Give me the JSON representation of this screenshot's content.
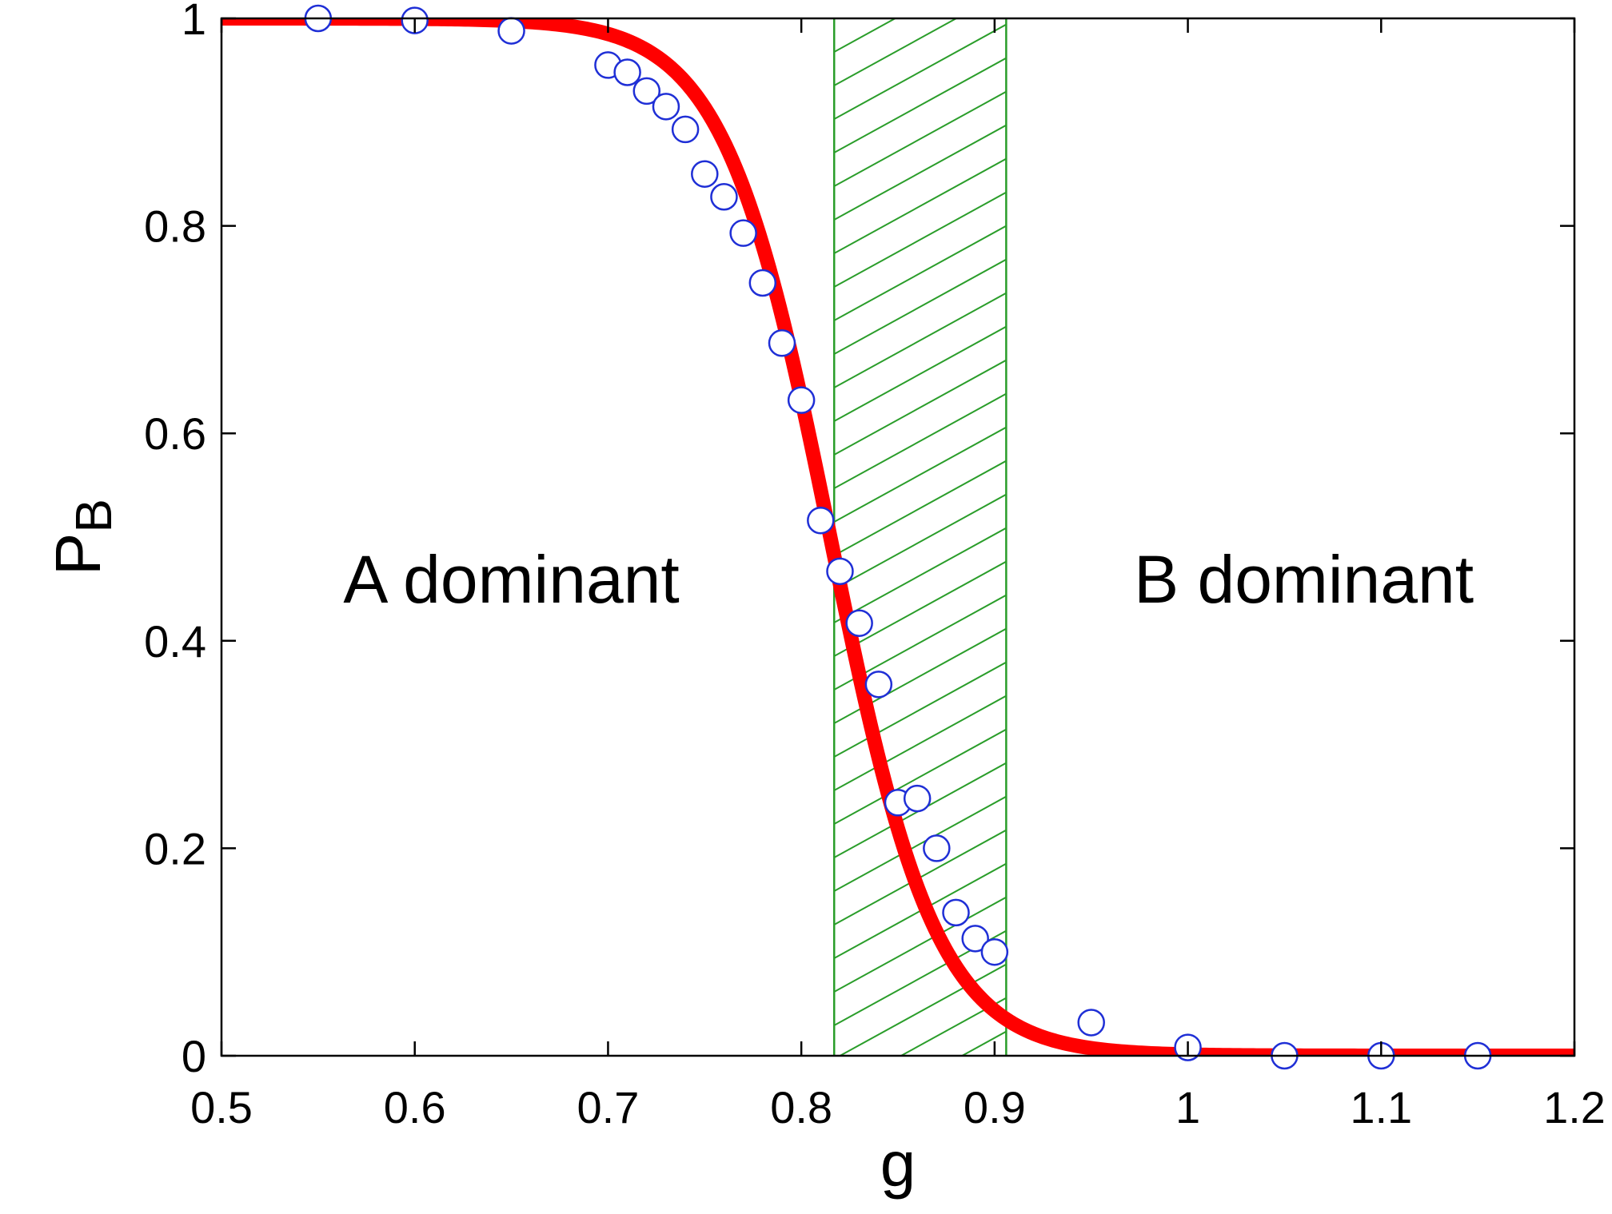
{
  "chart_data": {
    "type": "scatter",
    "xlabel": "g",
    "ylabel_main": "P",
    "ylabel_sub": "B",
    "xlim": [
      0.5,
      1.2
    ],
    "ylim": [
      0,
      1
    ],
    "x_ticks": [
      0.5,
      0.6,
      0.7,
      0.8,
      0.9,
      1.0,
      1.1,
      1.2
    ],
    "x_tick_labels": [
      "0.5",
      "0.6",
      "0.7",
      "0.8",
      "0.9",
      "1",
      "1.1",
      "1.2"
    ],
    "y_ticks": [
      0,
      0.2,
      0.4,
      0.6,
      0.8,
      1.0
    ],
    "y_tick_labels": [
      "0",
      "0.2",
      "0.4",
      "0.6",
      "0.8",
      "1"
    ],
    "grid": false,
    "annotations": [
      {
        "text": "A dominant",
        "x": 0.65,
        "y": 0.46
      },
      {
        "text": "B dominant",
        "x": 1.06,
        "y": 0.46
      }
    ],
    "shaded_region": {
      "x_start": 0.817,
      "x_end": 0.906,
      "pattern": "diagonal hatch",
      "color": "#2a9d2a"
    },
    "series": [
      {
        "kind": "curve",
        "color": "#ff0000",
        "model": "1/(1+exp((g-g0)/w))",
        "g0": 0.815,
        "w": 0.0275,
        "x": [
          0.5,
          0.55,
          0.6,
          0.65,
          0.7,
          0.72,
          0.74,
          0.76,
          0.78,
          0.8,
          0.815,
          0.83,
          0.85,
          0.87,
          0.89,
          0.91,
          0.95,
          1.0,
          1.05,
          1.1,
          1.15,
          1.2
        ],
        "y": [
          1.0,
          1.0,
          1.0,
          0.985,
          0.985,
          0.969,
          0.938,
          0.881,
          0.783,
          0.635,
          0.5,
          0.365,
          0.217,
          0.119,
          0.062,
          0.031,
          0.007,
          0.001,
          0.0,
          0.0,
          0.0,
          0.0
        ]
      },
      {
        "kind": "markers",
        "marker": "circle",
        "edge_color": "#1f2fd6",
        "face_color": "#ffffff",
        "x": [
          0.55,
          0.6,
          0.65,
          0.7,
          0.71,
          0.72,
          0.73,
          0.74,
          0.75,
          0.76,
          0.77,
          0.78,
          0.79,
          0.8,
          0.81,
          0.82,
          0.83,
          0.84,
          0.85,
          0.86,
          0.87,
          0.88,
          0.89,
          0.9,
          0.95,
          1.0,
          1.05,
          1.1,
          1.15
        ],
        "y": [
          1.0,
          0.998,
          0.988,
          0.955,
          0.948,
          0.93,
          0.915,
          0.893,
          0.85,
          0.828,
          0.793,
          0.745,
          0.687,
          0.632,
          0.516,
          0.467,
          0.417,
          0.358,
          0.244,
          0.248,
          0.2,
          0.138,
          0.113,
          0.1,
          0.032,
          0.008,
          0.0,
          0.0,
          0.0
        ]
      }
    ]
  }
}
